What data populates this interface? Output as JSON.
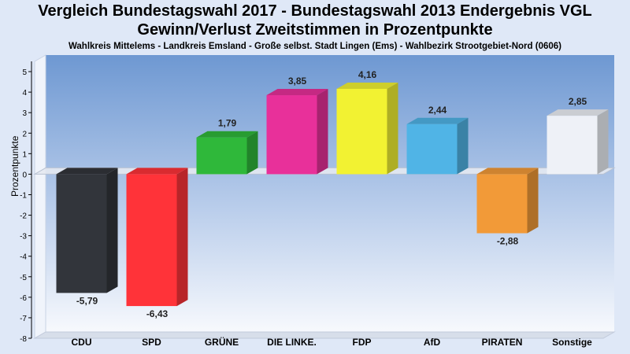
{
  "titles": {
    "line1": "Vergleich Bundestagswahl 2017 - Bundestagswahl 2013 Endergebnis VGL",
    "line2": "Gewinn/Verlust Zweitstimmen in Prozentpunkte",
    "line3": "Wahlkreis Mittelems - Landkreis Emsland - Große selbst. Stadt Lingen (Ems) - Wahlbezirk Strootgebiet-Nord (0606)"
  },
  "chart_data": {
    "type": "bar",
    "title": "Vergleich Bundestagswahl 2017 - Bundestagswahl 2013 Endergebnis VGL",
    "subtitle": "Gewinn/Verlust Zweitstimmen in Prozentpunkte",
    "ylabel": "Prozentpunkte",
    "xlabel": "",
    "ylim": [
      -8,
      5.5
    ],
    "yticks": [
      5,
      4,
      3,
      2,
      1,
      0,
      -1,
      -2,
      -3,
      -4,
      -5,
      -6,
      -7,
      -8
    ],
    "grid": false,
    "categories": [
      "CDU",
      "SPD",
      "GRÜNE",
      "DIE LINKE.",
      "FDP",
      "AfD",
      "PIRATEN",
      "Sonstige"
    ],
    "values": [
      -5.79,
      -6.43,
      1.79,
      3.85,
      4.16,
      2.44,
      -2.88,
      2.85
    ],
    "value_labels": [
      "-5,79",
      "-6,43",
      "1,79",
      "3,85",
      "4,16",
      "2,44",
      "-2,88",
      "2,85"
    ],
    "colors": [
      "#32353b",
      "#ff3339",
      "#2fb83a",
      "#e8309a",
      "#f2f232",
      "#50b4e6",
      "#f29a38",
      "#eef1f7"
    ]
  }
}
